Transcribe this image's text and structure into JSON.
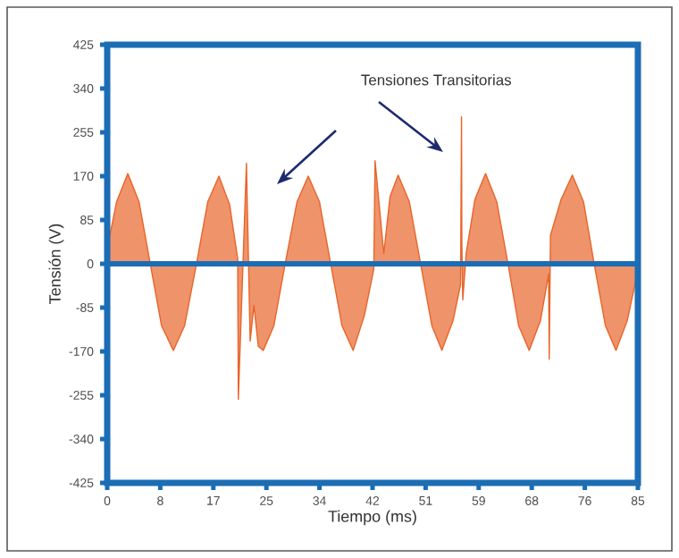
{
  "chart_data": {
    "type": "area",
    "xlabel": "Tiempo (ms)",
    "ylabel": "Tensión (V)",
    "annotations": [
      "Tensiones Transitorias"
    ],
    "x": [
      0,
      1.5,
      3.3,
      5.1,
      6.9,
      8.7,
      10.6,
      12.4,
      14.3,
      16.1,
      17.9,
      19.6,
      20.9,
      21.0,
      22.3,
      22.9,
      23.5,
      24.2,
      25.0,
      26.7,
      28.5,
      30.4,
      32.2,
      34.0,
      35.8,
      37.6,
      39.4,
      41.2,
      42.7,
      42.9,
      44.3,
      45.3,
      46.6,
      48.4,
      50.2,
      52.0,
      53.6,
      55.4,
      56.6,
      56.75,
      56.8,
      56.95,
      57.5,
      58.9,
      60.6,
      62.4,
      64.2,
      65.9,
      67.6,
      69.4,
      70.7,
      70.8,
      71.0,
      72.7,
      74.5,
      76.3,
      78.0,
      79.8,
      81.5,
      83.3,
      85
    ],
    "series": [
      {
        "color": "#e8652a",
        "values": [
          30,
          120,
          175,
          120,
          0,
          -120,
          -168,
          -120,
          0,
          120,
          170,
          115,
          10,
          -263,
          195,
          -150,
          -81,
          -160,
          -168,
          -120,
          0,
          120,
          170,
          120,
          0,
          -120,
          -168,
          -100,
          -10,
          200,
          20,
          130,
          172,
          120,
          0,
          -120,
          -168,
          -110,
          -40,
          285,
          40,
          -70,
          20,
          125,
          175,
          120,
          0,
          -120,
          -168,
          -110,
          -20,
          -185,
          55,
          125,
          172,
          120,
          0,
          -120,
          -168,
          -110,
          -14
        ]
      }
    ],
    "xlim": [
      0,
      85
    ],
    "ylim": [
      -425,
      425
    ],
    "xticks": [
      0,
      {
        "value": 8.5,
        "label": "8"
      },
      17,
      {
        "value": 25.5,
        "label": "25"
      },
      34,
      {
        "value": 42.5,
        "label": "42"
      },
      51,
      {
        "value": 59.5,
        "label": "59"
      },
      68,
      {
        "value": 76.5,
        "label": "76"
      },
      85
    ],
    "yticks": [
      425,
      340,
      255,
      170,
      85,
      0,
      -85,
      -170,
      -255,
      -340,
      -425
    ],
    "ref_lines": [
      {
        "axis": "y",
        "value": 0,
        "color": "#1b6db5"
      }
    ],
    "grid": false,
    "marker": "none",
    "line_style": "solid"
  }
}
